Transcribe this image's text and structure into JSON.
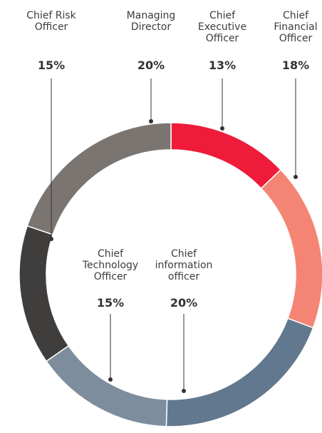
{
  "chart_data": {
    "type": "donut",
    "categories": [
      "Chief\nExecutive\nOfficer",
      "Chief\nFinancial\nOfficer",
      "Chief\ninformation\nofficer",
      "Chief\nTechnology\nOfficer",
      "Chief Risk\nOfficer",
      "Managing\nDirector"
    ],
    "values": [
      13,
      18,
      20,
      15,
      15,
      20
    ],
    "value_labels": [
      "13%",
      "18%",
      "20%",
      "15%",
      "15%",
      "20%"
    ],
    "colors": [
      "#ee1c3a",
      "#f48574",
      "#62788e",
      "#7d8d9e",
      "#3f3e3c",
      "#7b7572"
    ]
  }
}
